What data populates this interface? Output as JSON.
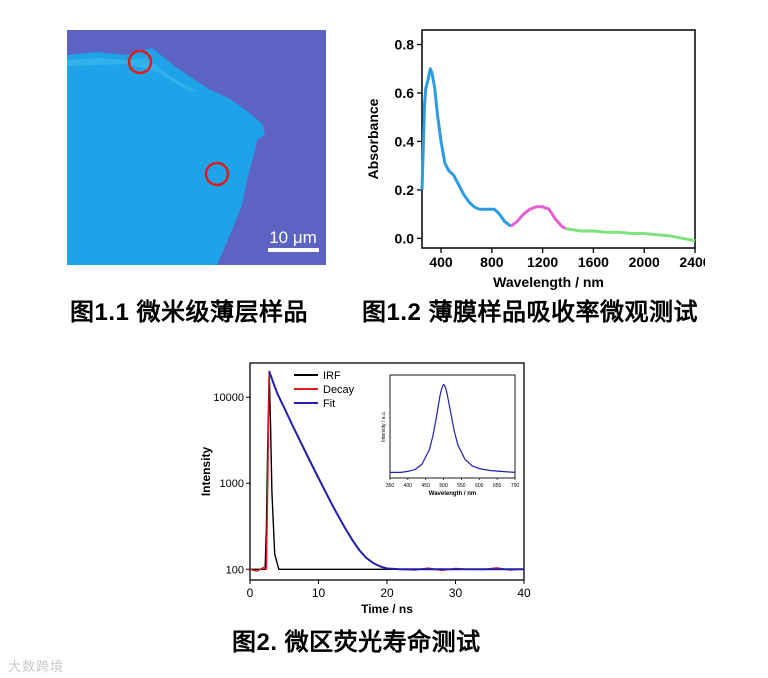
{
  "figure1": {
    "caption": "图1.1 微米级薄层样品",
    "scale_bar": "10 μm"
  },
  "figure2": {
    "caption": "图1.2 薄膜样品吸收率微观测试"
  },
  "figure3": {
    "caption": "图2. 微区荧光寿命测试"
  },
  "watermark": "大数跨境",
  "colors": {
    "flake": "#1FA3E8",
    "substrate": "#5D63C2",
    "marker": "#E01B1B",
    "irf": "#000000",
    "decay": "#E01B1B",
    "fit": "#2020B0",
    "abs_seg1": "#2C9BE0",
    "abs_seg2": "#E45FD0",
    "abs_seg3": "#7EE27E"
  },
  "chart_data": [
    {
      "type": "line",
      "xlabel": "Wavelength / nm",
      "ylabel": "Absorbance",
      "xlim": [
        250,
        2400
      ],
      "ylim": [
        -0.04,
        0.86
      ],
      "xticks": [
        400,
        800,
        1200,
        1600,
        2000,
        2400
      ],
      "yticks": [
        0.0,
        0.2,
        0.4,
        0.6,
        0.8
      ],
      "series": [
        {
          "x": [
            250,
            260,
            270,
            280,
            290,
            300,
            315,
            330,
            350,
            370,
            400,
            430,
            460,
            500,
            540,
            580,
            620,
            660,
            700,
            740,
            780,
            820,
            860,
            900,
            950
          ],
          "y": [
            0.2,
            0.38,
            0.55,
            0.62,
            0.64,
            0.66,
            0.7,
            0.68,
            0.62,
            0.52,
            0.4,
            0.31,
            0.28,
            0.26,
            0.22,
            0.18,
            0.15,
            0.13,
            0.12,
            0.12,
            0.12,
            0.12,
            0.1,
            0.07,
            0.05
          ]
        },
        {
          "x": [
            950,
            1000,
            1050,
            1100,
            1150,
            1200,
            1250,
            1300,
            1350,
            1380
          ],
          "y": [
            0.05,
            0.07,
            0.1,
            0.12,
            0.13,
            0.13,
            0.12,
            0.08,
            0.05,
            0.04
          ]
        },
        {
          "x": [
            1380,
            1500,
            1600,
            1700,
            1800,
            1900,
            2000,
            2100,
            2200,
            2300,
            2400
          ],
          "y": [
            0.04,
            0.03,
            0.03,
            0.025,
            0.025,
            0.02,
            0.02,
            0.015,
            0.01,
            0.0,
            -0.01
          ]
        }
      ]
    },
    {
      "type": "line",
      "xlabel": "Time / ns",
      "ylabel": "Intensity",
      "xlim": [
        0,
        40
      ],
      "ylim": [
        75,
        25000
      ],
      "yscale": "log",
      "xticks": [
        0,
        10,
        20,
        30,
        40
      ],
      "yticks": [
        100,
        1000,
        10000
      ],
      "legend": "top-left",
      "series": [
        {
          "name": "IRF",
          "x": [
            0,
            2.2,
            2.4,
            2.6,
            2.8,
            3.0,
            3.2,
            3.6,
            4.2,
            40
          ],
          "y": [
            100,
            100,
            300,
            3000,
            20000,
            5000,
            800,
            150,
            100,
            100
          ]
        },
        {
          "name": "Decay",
          "x": [
            0,
            1,
            2,
            2.4,
            2.6,
            2.8,
            3.5,
            4,
            5,
            6,
            7,
            8,
            9,
            10,
            11,
            12,
            13,
            14,
            15,
            16,
            17,
            18,
            19,
            20,
            22,
            24,
            26,
            28,
            30,
            32,
            34,
            36,
            38,
            40
          ],
          "y": [
            100,
            95,
            105,
            100,
            1000,
            20000,
            14000,
            11000,
            7500,
            5100,
            3500,
            2400,
            1650,
            1150,
            800,
            560,
            400,
            290,
            215,
            165,
            135,
            118,
            108,
            102,
            100,
            98,
            103,
            97,
            102,
            100,
            99,
            104,
            98,
            101
          ]
        },
        {
          "name": "Fit",
          "x": [
            2.8,
            3.5,
            4,
            5,
            6,
            7,
            8,
            9,
            10,
            11,
            12,
            13,
            14,
            15,
            16,
            17,
            18,
            19,
            20,
            22,
            24,
            26,
            28,
            30,
            32,
            34,
            36,
            38,
            40
          ],
          "y": [
            20000,
            14000,
            11000,
            7500,
            5100,
            3500,
            2400,
            1650,
            1150,
            800,
            560,
            400,
            290,
            215,
            165,
            135,
            118,
            108,
            102,
            100,
            100,
            100,
            100,
            100,
            100,
            100,
            100,
            100,
            100
          ]
        }
      ]
    },
    {
      "type": "line",
      "xlabel": "Wavelength / nm",
      "ylabel": "Intensity / a.u.",
      "xlim": [
        350,
        700
      ],
      "ylim": [
        0,
        1.1
      ],
      "xticks": [
        350,
        400,
        450,
        500,
        550,
        600,
        650,
        700
      ],
      "series": [
        {
          "x": [
            350,
            380,
            400,
            420,
            440,
            460,
            470,
            480,
            490,
            495,
            500,
            505,
            510,
            520,
            530,
            540,
            560,
            580,
            600,
            630,
            660,
            700
          ],
          "y": [
            0.06,
            0.06,
            0.07,
            0.09,
            0.15,
            0.3,
            0.45,
            0.65,
            0.88,
            0.96,
            1.0,
            0.97,
            0.9,
            0.7,
            0.5,
            0.35,
            0.2,
            0.13,
            0.1,
            0.08,
            0.07,
            0.06
          ]
        }
      ]
    }
  ]
}
